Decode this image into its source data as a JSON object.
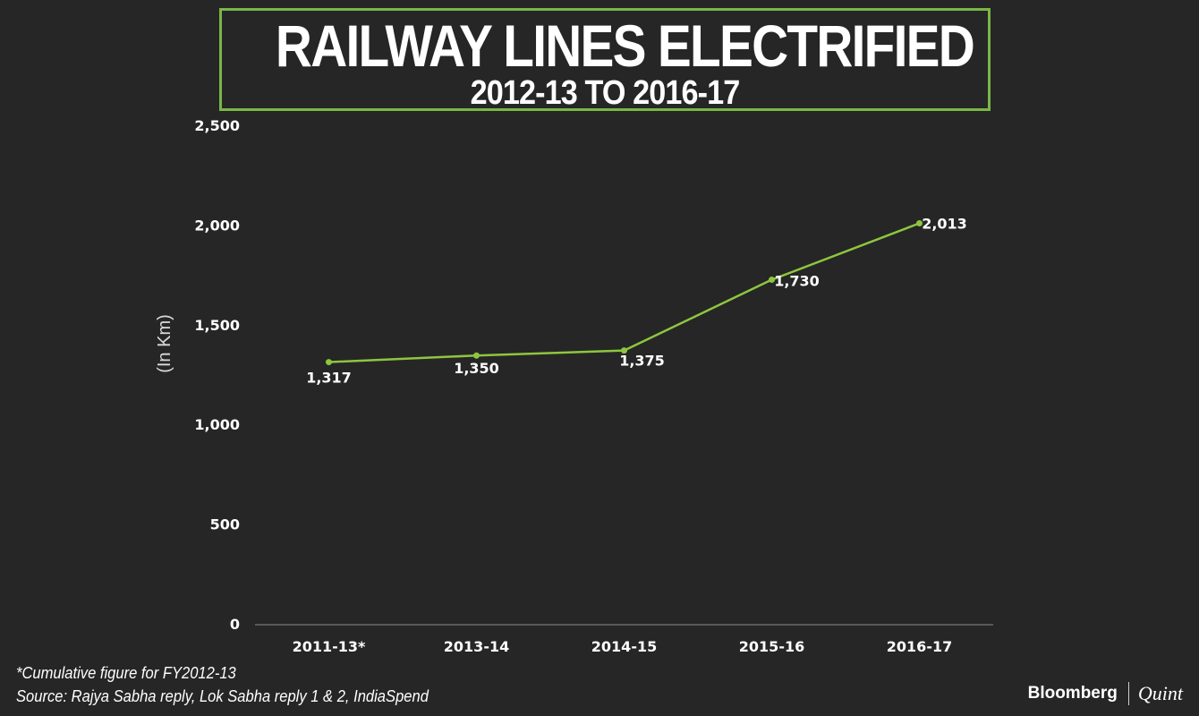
{
  "header": {
    "title": "RAILWAY LINES ELECTRIFIED",
    "subtitle": "2012-13 TO 2016-17"
  },
  "chart_data": {
    "type": "line",
    "title": "RAILWAY LINES ELECTRIFIED",
    "subtitle": "2012-13 TO 2016-17",
    "categories": [
      "2011-13*",
      "2013-14",
      "2014-15",
      "2015-16",
      "2016-17"
    ],
    "series": [
      {
        "values": [
          1317,
          1350,
          1375,
          1730,
          2013
        ]
      }
    ],
    "data_labels": [
      "1,317",
      "1,350",
      "1,375",
      "1,730",
      "2,013"
    ],
    "ylabel": "(In Km)",
    "xlabel": "",
    "ylim": [
      0,
      2500
    ],
    "yticks": [
      0,
      500,
      1000,
      1500,
      2000,
      2500
    ],
    "ytick_labels": [
      "0",
      "500",
      "1,000",
      "1,500",
      "2,000",
      "2,500"
    ],
    "grid": false,
    "line_color": "#8dc63f",
    "axis_color": "#8c8c8c"
  },
  "footnotes": {
    "note": "*Cumulative figure for FY2012-13",
    "source": "Source: Rajya Sabha reply, Lok Sabha reply 1 & 2, IndiaSpend"
  },
  "branding": {
    "primary": "Bloomberg",
    "secondary": "Quint"
  },
  "colors": {
    "background": "#262626",
    "accent": "#7ab648",
    "text": "#ffffff"
  }
}
